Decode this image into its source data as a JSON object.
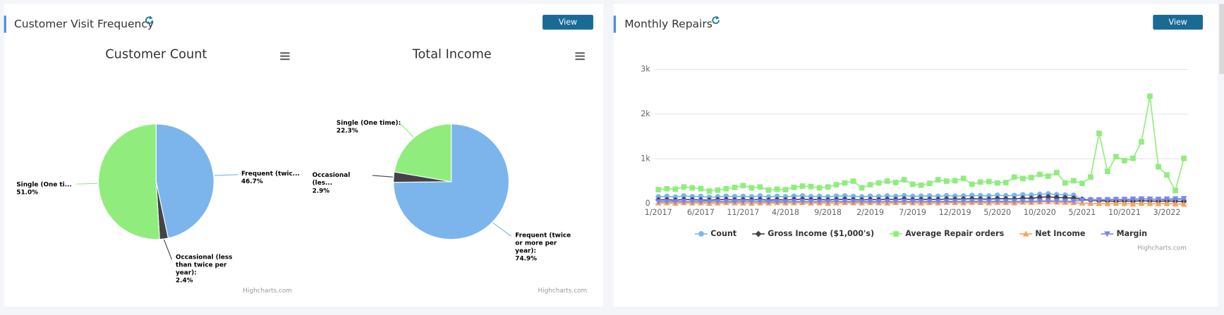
{
  "panels": [
    {
      "title": "Customer Visit Frequency",
      "button": "View"
    },
    {
      "title": "Monthly Repairs",
      "button": "View"
    }
  ],
  "chart_data": [
    {
      "type": "pie",
      "title": "Customer Count",
      "categories": [
        "Frequent (twic...",
        "Occasional (less than twice per year):",
        "Single (One ti..."
      ],
      "values": [
        46.7,
        2.4,
        51.0
      ],
      "value_labels": [
        "46.7%",
        "2.4%",
        "51.0%"
      ],
      "colors": [
        "#7cb5ec",
        "#434348",
        "#90ed7d"
      ],
      "credits": "Highcharts.com"
    },
    {
      "type": "pie",
      "title": "Total Income",
      "categories": [
        "Frequent (twice or more per year):",
        "Occasional (les...",
        "Single (One time):"
      ],
      "values": [
        74.9,
        2.9,
        22.3
      ],
      "value_labels": [
        "74.9%",
        "2.9%",
        "22.3%"
      ],
      "colors": [
        "#7cb5ec",
        "#434348",
        "#90ed7d"
      ],
      "credits": "Highcharts.com"
    },
    {
      "type": "line",
      "categories": [
        "1/2017",
        null,
        null,
        null,
        null,
        "6/2017",
        null,
        null,
        null,
        null,
        "11/2017",
        null,
        null,
        null,
        null,
        "4/2018",
        null,
        null,
        null,
        null,
        "9/2018",
        null,
        null,
        null,
        null,
        "2/2019",
        null,
        null,
        null,
        null,
        "7/2019",
        null,
        null,
        null,
        null,
        "12/2019",
        null,
        null,
        null,
        null,
        "5/2020",
        null,
        null,
        null,
        null,
        "10/2020",
        null,
        null,
        null,
        null,
        "5/2021",
        null,
        null,
        null,
        null,
        "10/2021",
        null,
        null,
        null,
        null,
        "3/2022",
        null,
        null
      ],
      "ylim": [
        0,
        3000
      ],
      "yticks": [
        0,
        {
          "value": 1000,
          "label": "1k"
        },
        {
          "value": 2000,
          "label": "2k"
        },
        {
          "value": 3000,
          "label": "3k"
        }
      ],
      "grid": true,
      "series": [
        {
          "name": "Count",
          "color": "#7cb5ec",
          "marker": "circle",
          "values": [
            150,
            160,
            145,
            170,
            155,
            160,
            140,
            150,
            165,
            155,
            160,
            150,
            170,
            145,
            160,
            150,
            165,
            170,
            155,
            160,
            150,
            165,
            170,
            160,
            150,
            165,
            155,
            170,
            160,
            175,
            160,
            165,
            170,
            160,
            175,
            165,
            170,
            180,
            175,
            170,
            185,
            175,
            180,
            195,
            190,
            205,
            215,
            200,
            190,
            185,
            95,
            90,
            85,
            90,
            95,
            85,
            90,
            95,
            100,
            90,
            85,
            90,
            80
          ]
        },
        {
          "name": "Gross Income ($1,000's)",
          "color": "#434348",
          "marker": "diamond",
          "values": [
            80,
            85,
            75,
            90,
            85,
            80,
            75,
            85,
            90,
            80,
            85,
            80,
            90,
            75,
            85,
            80,
            90,
            95,
            85,
            90,
            80,
            90,
            95,
            85,
            80,
            90,
            85,
            95,
            90,
            100,
            85,
            90,
            95,
            90,
            100,
            95,
            100,
            105,
            100,
            95,
            110,
            105,
            100,
            120,
            115,
            140,
            150,
            135,
            130,
            120,
            90,
            70,
            60,
            55,
            50,
            55,
            50,
            60,
            55,
            50,
            55,
            50,
            45
          ]
        },
        {
          "name": "Average Repair orders",
          "color": "#90ed7d",
          "marker": "square",
          "values": [
            310,
            330,
            320,
            370,
            350,
            330,
            280,
            300,
            330,
            360,
            400,
            350,
            370,
            300,
            320,
            310,
            360,
            390,
            380,
            350,
            370,
            420,
            460,
            500,
            350,
            420,
            460,
            500,
            470,
            530,
            430,
            410,
            450,
            530,
            500,
            510,
            560,
            430,
            480,
            490,
            460,
            470,
            590,
            560,
            580,
            650,
            610,
            690,
            460,
            510,
            450,
            590,
            1570,
            720,
            1050,
            960,
            1010,
            1380,
            2400,
            820,
            640,
            290,
            1010
          ]
        },
        {
          "name": "Net Income",
          "color": "#f7a35c",
          "marker": "triangle",
          "values": [
            10,
            15,
            5,
            20,
            10,
            15,
            5,
            10,
            20,
            15,
            10,
            5,
            15,
            10,
            20,
            10,
            15,
            20,
            10,
            15,
            5,
            10,
            20,
            15,
            10,
            20,
            15,
            10,
            20,
            25,
            15,
            10,
            20,
            15,
            25,
            20,
            15,
            25,
            20,
            15,
            25,
            20,
            15,
            30,
            25,
            35,
            40,
            30,
            25,
            20,
            10,
            5,
            0,
            -5,
            5,
            0,
            -10,
            5,
            0,
            -5,
            0,
            -10,
            -15
          ]
        },
        {
          "name": "Margin",
          "color": "#8085e9",
          "marker": "triangle-down",
          "values": [
            40,
            42,
            38,
            45,
            41,
            40,
            37,
            42,
            44,
            40,
            41,
            39,
            43,
            38,
            42,
            40,
            43,
            45,
            41,
            42,
            40,
            43,
            45,
            42,
            40,
            44,
            41,
            45,
            43,
            47,
            42,
            44,
            46,
            43,
            48,
            45,
            47,
            50,
            48,
            46,
            50,
            48,
            47,
            52,
            50,
            55,
            58,
            54,
            52,
            50,
            70,
            75,
            80,
            85,
            90,
            95,
            100,
            105,
            100,
            95,
            100,
            105,
            110
          ]
        }
      ],
      "credits": "Highcharts.com"
    }
  ]
}
